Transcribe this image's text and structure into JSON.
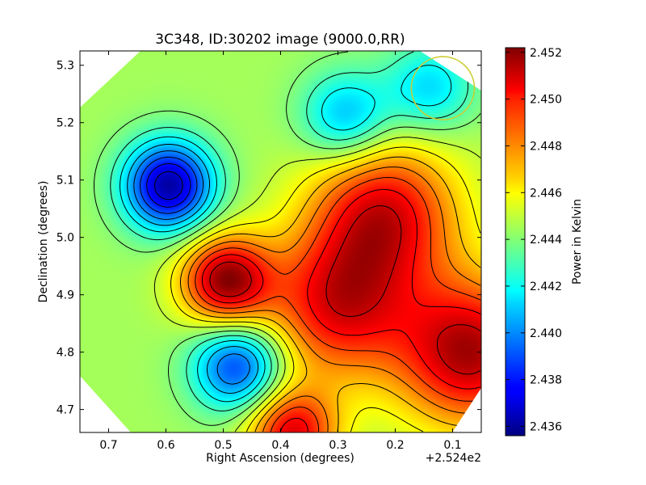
{
  "chart_data": {
    "type": "heatmap",
    "title": "3C348, ID:30202 image (9000.0,RR)",
    "xlabel": "Right Ascension (degrees)",
    "ylabel": "Declination (degrees)",
    "x_offset_label": "+2.524e2",
    "x_ticks": [
      "0.7",
      "0.6",
      "0.5",
      "0.4",
      "0.3",
      "0.2",
      "0.1"
    ],
    "x_tick_values": [
      0.7,
      0.6,
      0.5,
      0.4,
      0.3,
      0.2,
      0.1
    ],
    "xlim": [
      0.75,
      0.05
    ],
    "y_ticks": [
      "4.7",
      "4.8",
      "4.9",
      "5.0",
      "5.1",
      "5.2",
      "5.3"
    ],
    "y_tick_values": [
      4.7,
      4.8,
      4.9,
      5.0,
      5.1,
      5.2,
      5.3
    ],
    "ylim": [
      4.66,
      5.325
    ],
    "colorbar": {
      "label": "Power in Kelvin",
      "ticks": [
        "2.436",
        "2.438",
        "2.440",
        "2.442",
        "2.444",
        "2.446",
        "2.448",
        "2.450",
        "2.452"
      ],
      "tick_values": [
        2.436,
        2.438,
        2.44,
        2.442,
        2.444,
        2.446,
        2.448,
        2.45,
        2.452
      ],
      "range": [
        2.4356,
        2.4522
      ],
      "colormap": "jet"
    },
    "features": [
      {
        "kind": "min",
        "ra": 0.595,
        "dec": 5.09,
        "value": 2.4362
      },
      {
        "kind": "min",
        "ra": 0.475,
        "dec": 4.775,
        "value": 2.4385
      },
      {
        "kind": "min",
        "ra": 0.285,
        "dec": 5.21,
        "value": 2.4405
      },
      {
        "kind": "min",
        "ra": 0.14,
        "dec": 5.26,
        "value": 2.4412
      },
      {
        "kind": "max",
        "ra": 0.495,
        "dec": 4.925,
        "value": 2.4518
      },
      {
        "kind": "max",
        "ra": 0.22,
        "dec": 5.04,
        "value": 2.4505
      },
      {
        "kind": "max",
        "ra": 0.3,
        "dec": 4.88,
        "value": 2.4502
      },
      {
        "kind": "max",
        "ra": 0.07,
        "dec": 4.8,
        "value": 2.4515
      },
      {
        "kind": "max",
        "ra": 0.38,
        "dec": 4.66,
        "value": 2.4505
      }
    ],
    "background_value": 2.4445,
    "circle": {
      "ra": 0.117,
      "dec": 5.26,
      "radius_deg": 0.055,
      "color": "#cccc33"
    }
  }
}
